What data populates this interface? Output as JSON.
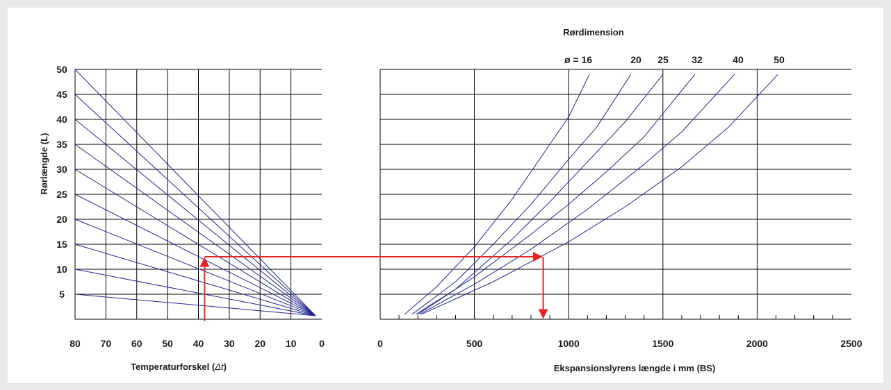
{
  "chart_data": [
    {
      "type": "line",
      "xlabel_parts": [
        "Temperaturforskel (",
        "Δt",
        ")"
      ],
      "ylabel": "Rørlængde (L)",
      "x_ticks": [
        "80",
        "70",
        "60",
        "50",
        "40",
        "30",
        "20",
        "10",
        "0"
      ],
      "y_ticks": [
        "5",
        "10",
        "15",
        "20",
        "25",
        "30",
        "35",
        "40",
        "45",
        "50"
      ],
      "xlim": [
        80,
        0
      ],
      "ylim": [
        0,
        50
      ],
      "x_axis_reversed": true,
      "grid": true,
      "line_color": "#25258f",
      "series": [
        {
          "x": [
            80,
            2
          ],
          "y": [
            5,
            0.7
          ]
        },
        {
          "x": [
            80,
            2
          ],
          "y": [
            10,
            0.7
          ]
        },
        {
          "x": [
            80,
            2
          ],
          "y": [
            15,
            0.7
          ]
        },
        {
          "x": [
            80,
            2
          ],
          "y": [
            20,
            0.7
          ]
        },
        {
          "x": [
            80,
            2
          ],
          "y": [
            25,
            0.7
          ]
        },
        {
          "x": [
            80,
            2
          ],
          "y": [
            30,
            0.7
          ]
        },
        {
          "x": [
            80,
            2
          ],
          "y": [
            35,
            0.7
          ]
        },
        {
          "x": [
            80,
            2
          ],
          "y": [
            40,
            0.7
          ]
        },
        {
          "x": [
            80,
            2
          ],
          "y": [
            45,
            0.7
          ]
        },
        {
          "x": [
            80,
            2
          ],
          "y": [
            50,
            0.7
          ]
        }
      ]
    },
    {
      "type": "line",
      "title": "Rørdimension",
      "xlabel": "Ekspansionslyrens længde i mm (BS)",
      "x_ticks": [
        "0",
        "500",
        "1000",
        "1500",
        "2000",
        "2500"
      ],
      "xlim": [
        0,
        2500
      ],
      "ylim": [
        0,
        50
      ],
      "grid": true,
      "line_color": "#25258f",
      "series": [
        {
          "name": "ø = 16",
          "x": [
            130,
            300,
            500,
            700,
            900,
            1000,
            1110
          ],
          "y": [
            1,
            6.5,
            14.5,
            24,
            35,
            40.5,
            49
          ]
        },
        {
          "name": "20",
          "x": [
            170,
            400,
            600,
            800,
            1000,
            1150,
            1330
          ],
          "y": [
            1,
            7.5,
            15,
            23,
            32,
            38.5,
            49
          ]
        },
        {
          "name": "25",
          "x": [
            190,
            400,
            700,
            900,
            1100,
            1300,
            1500
          ],
          "y": [
            1,
            6,
            16,
            23.5,
            31.5,
            39.5,
            49
          ]
        },
        {
          "name": "32",
          "x": [
            200,
            500,
            800,
            1000,
            1200,
            1400,
            1670
          ],
          "y": [
            1,
            8.5,
            17,
            23,
            29.5,
            36.5,
            49
          ]
        },
        {
          "name": "40",
          "x": [
            210,
            500,
            800,
            1100,
            1400,
            1600,
            1880
          ],
          "y": [
            1,
            7,
            14,
            22,
            31,
            37.5,
            49
          ]
        },
        {
          "name": "50",
          "x": [
            220,
            600,
            1000,
            1300,
            1600,
            1850,
            2110
          ],
          "y": [
            1,
            7.5,
            15.5,
            22.5,
            30.5,
            38.5,
            49
          ]
        }
      ]
    }
  ],
  "example_reading": {
    "color": "#e62424",
    "delta_t": 38,
    "pipe_length": 12.5,
    "loop_length_mm": 865
  }
}
